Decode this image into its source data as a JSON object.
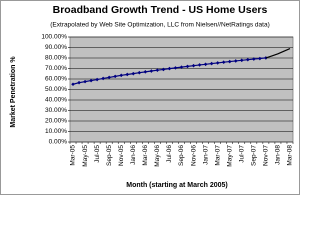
{
  "chart_data": {
    "type": "line",
    "title": "Broadband Growth Trend - US Home Users",
    "subtitle": "(Extrapolated by Web Site Optimization, LLC from Nielsen//NetRatings data)",
    "x_label": "Month (starting at March 2005)",
    "y_label": "Market Penetration %",
    "categories": [
      "Mar-05",
      null,
      "May-05",
      null,
      "Jul-05",
      null,
      "Sep-05",
      null,
      "Nov-05",
      null,
      "Jan-06",
      null,
      "Mar-06",
      null,
      "May-06",
      null,
      "Jul-06",
      null,
      "Sep-06",
      null,
      "Nov-06",
      null,
      "Jan-07",
      null,
      "Mar-07",
      null,
      "May-07",
      null,
      "Jul-07",
      null,
      "Sep-07",
      null,
      "Nov-07",
      null,
      "Jan-08",
      null,
      "Mar-08"
    ],
    "series": [
      {
        "color": "#000080",
        "markers": true,
        "values": [
          55,
          56.5,
          57.5,
          58.5,
          59.5,
          60.5,
          61.5,
          62.5,
          63.5,
          64.3,
          65.1,
          66,
          66.8,
          67.6,
          68.4,
          69.1,
          69.9,
          70.6,
          71.3,
          72,
          72.7,
          73.4,
          74,
          74.7,
          75.3,
          76,
          76.6,
          77.2,
          77.8,
          78.4,
          79,
          79.5,
          80.1,
          null,
          null,
          null,
          null
        ]
      },
      {
        "color": "#000000",
        "markers": false,
        "values": [
          null,
          null,
          null,
          null,
          null,
          null,
          null,
          null,
          null,
          null,
          null,
          null,
          null,
          null,
          null,
          null,
          null,
          null,
          null,
          null,
          null,
          null,
          null,
          null,
          null,
          null,
          null,
          null,
          null,
          null,
          null,
          null,
          80.1,
          82,
          84,
          86.5,
          89
        ]
      }
    ],
    "ylim": [
      0,
      100
    ],
    "yticks": [
      {
        "value": 0,
        "label": "0.00%"
      },
      {
        "value": 10,
        "label": "10.00%"
      },
      {
        "value": 20,
        "label": "20.00%"
      },
      {
        "value": 30,
        "label": "30.00%"
      },
      {
        "value": 40,
        "label": "40.00%"
      },
      {
        "value": 50,
        "label": "50.00%"
      },
      {
        "value": 60,
        "label": "60.00%"
      },
      {
        "value": 70,
        "label": "70.00%"
      },
      {
        "value": 80,
        "label": "80.00%"
      },
      {
        "value": 90,
        "label": "90.00%"
      },
      {
        "value": 100,
        "label": "100.00%"
      }
    ],
    "grid": true,
    "plot_background": "#c0c0c0"
  }
}
